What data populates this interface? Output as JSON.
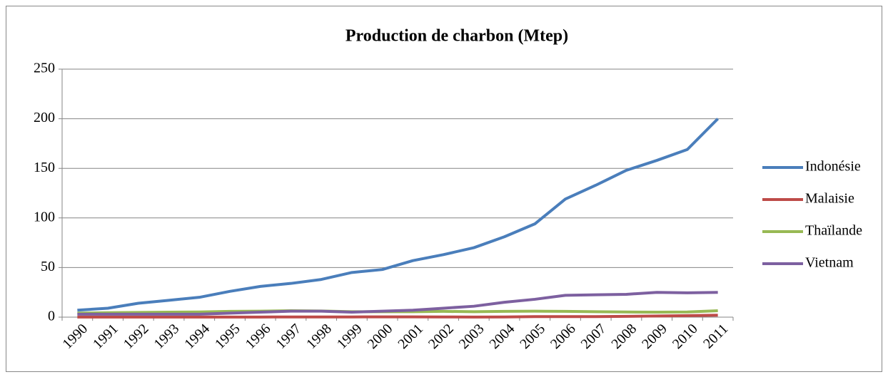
{
  "chart_data": {
    "type": "line",
    "title": "Production de charbon (Mtep)",
    "categories": [
      "1990",
      "1991",
      "1992",
      "1993",
      "1994",
      "1995",
      "1996",
      "1997",
      "1998",
      "1999",
      "2000",
      "2001",
      "2002",
      "2003",
      "2004",
      "2005",
      "2006",
      "2007",
      "2008",
      "2009",
      "2010",
      "2011"
    ],
    "series": [
      {
        "name": "Indonésie",
        "color": "#4a7ebb",
        "values": [
          7,
          9,
          14,
          17,
          20,
          26,
          31,
          34,
          38,
          45,
          48,
          57,
          63,
          70,
          81,
          94,
          119,
          133,
          148,
          158,
          169,
          200
        ]
      },
      {
        "name": "Malaisie",
        "color": "#be4b48",
        "values": [
          0.1,
          0.1,
          0.1,
          0.1,
          0.1,
          0.1,
          0.1,
          0.2,
          0.2,
          0.2,
          0.3,
          0.3,
          0.2,
          0.1,
          0.2,
          0.5,
          0.5,
          0.5,
          0.8,
          1.2,
          1.5,
          2
        ]
      },
      {
        "name": "Thaïlande",
        "color": "#98b954",
        "values": [
          4,
          4.5,
          4.8,
          5,
          5.2,
          5.8,
          6,
          6.5,
          6.2,
          5.5,
          5.5,
          5.5,
          5.8,
          5.5,
          5.8,
          6,
          5.8,
          5.5,
          5.2,
          5,
          5.2,
          6.5
        ]
      },
      {
        "name": "Vietnam",
        "color": "#7d60a0",
        "values": [
          3,
          3,
          3,
          3,
          3,
          4,
          5,
          6,
          6,
          5,
          6,
          7,
          9,
          11,
          15,
          18,
          22,
          22.5,
          23,
          25,
          24.5,
          25
        ]
      }
    ],
    "ylim": [
      0,
      250
    ],
    "yticks": [
      0,
      50,
      100,
      150,
      200,
      250
    ],
    "grid": true,
    "legend": "right"
  }
}
